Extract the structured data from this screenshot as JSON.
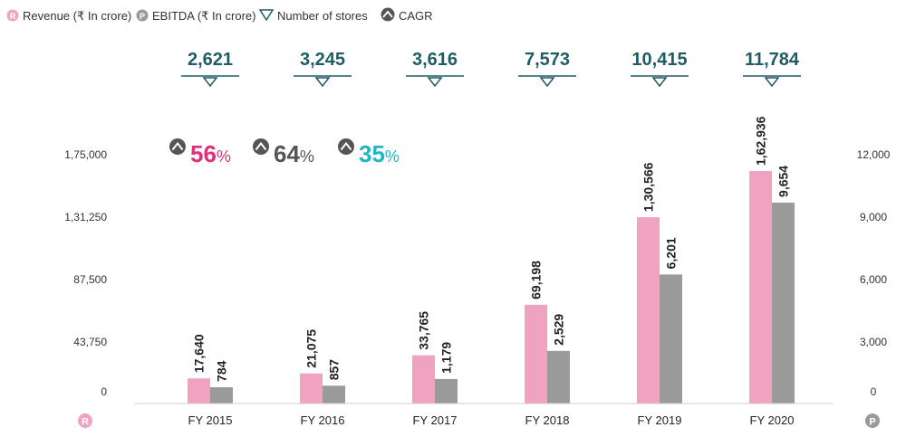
{
  "legend": {
    "revenue": "Revenue (₹ In crore)",
    "ebitda": "EBITDA (₹ In crore)",
    "stores": "Number of stores",
    "cagr": "CAGR"
  },
  "axis_badges": {
    "left": "R",
    "right": "P"
  },
  "cagr_values": [
    {
      "value": "56",
      "color": "#e0307a"
    },
    {
      "value": "64",
      "color": "#555555"
    },
    {
      "value": "35",
      "color": "#1fb5c4"
    }
  ],
  "cagr_suffix": "%",
  "colors": {
    "revenue": "#f0a3c0",
    "ebitda": "#9a9a9a",
    "stores": "#1f5c66",
    "badge": "#f0a3c0",
    "badge_right": "#9a9a9a"
  },
  "chart_data": {
    "type": "bar",
    "categories": [
      "FY 2015",
      "FY 2016",
      "FY 2017",
      "FY 2018",
      "FY 2019",
      "FY 2020"
    ],
    "series": [
      {
        "name": "Revenue (₹ In crore)",
        "axis": "left",
        "values": [
          17640,
          21075,
          33765,
          69198,
          130566,
          162936
        ],
        "labels": [
          "17,640",
          "21,075",
          "33,765",
          "69,198",
          "1,30,566",
          "1,62,936"
        ]
      },
      {
        "name": "EBITDA (₹ In crore)",
        "axis": "right",
        "values": [
          784,
          857,
          1179,
          2529,
          6201,
          9654
        ],
        "labels": [
          "784",
          "857",
          "1,179",
          "2,529",
          "6,201",
          "9,654"
        ]
      }
    ],
    "stores": {
      "name": "Number of stores",
      "values": [
        2621,
        3245,
        3616,
        7573,
        10415,
        11784
      ],
      "labels": [
        "2,621",
        "3,245",
        "3,616",
        "7,573",
        "10,415",
        "11,784"
      ]
    },
    "left_axis": {
      "ylim": [
        0,
        175000
      ],
      "ticks": [
        0,
        43750,
        87500,
        131250,
        175000
      ],
      "tick_labels": [
        "0",
        "43,750",
        "87,500",
        "1,31,250",
        "1,75,000"
      ]
    },
    "right_axis": {
      "ylim": [
        0,
        12000
      ],
      "ticks": [
        0,
        3000,
        6000,
        9000,
        12000
      ],
      "tick_labels": [
        "0",
        "3,000",
        "6,000",
        "9,000",
        "12,000"
      ]
    },
    "legend_position": "top-left",
    "grid": false
  }
}
